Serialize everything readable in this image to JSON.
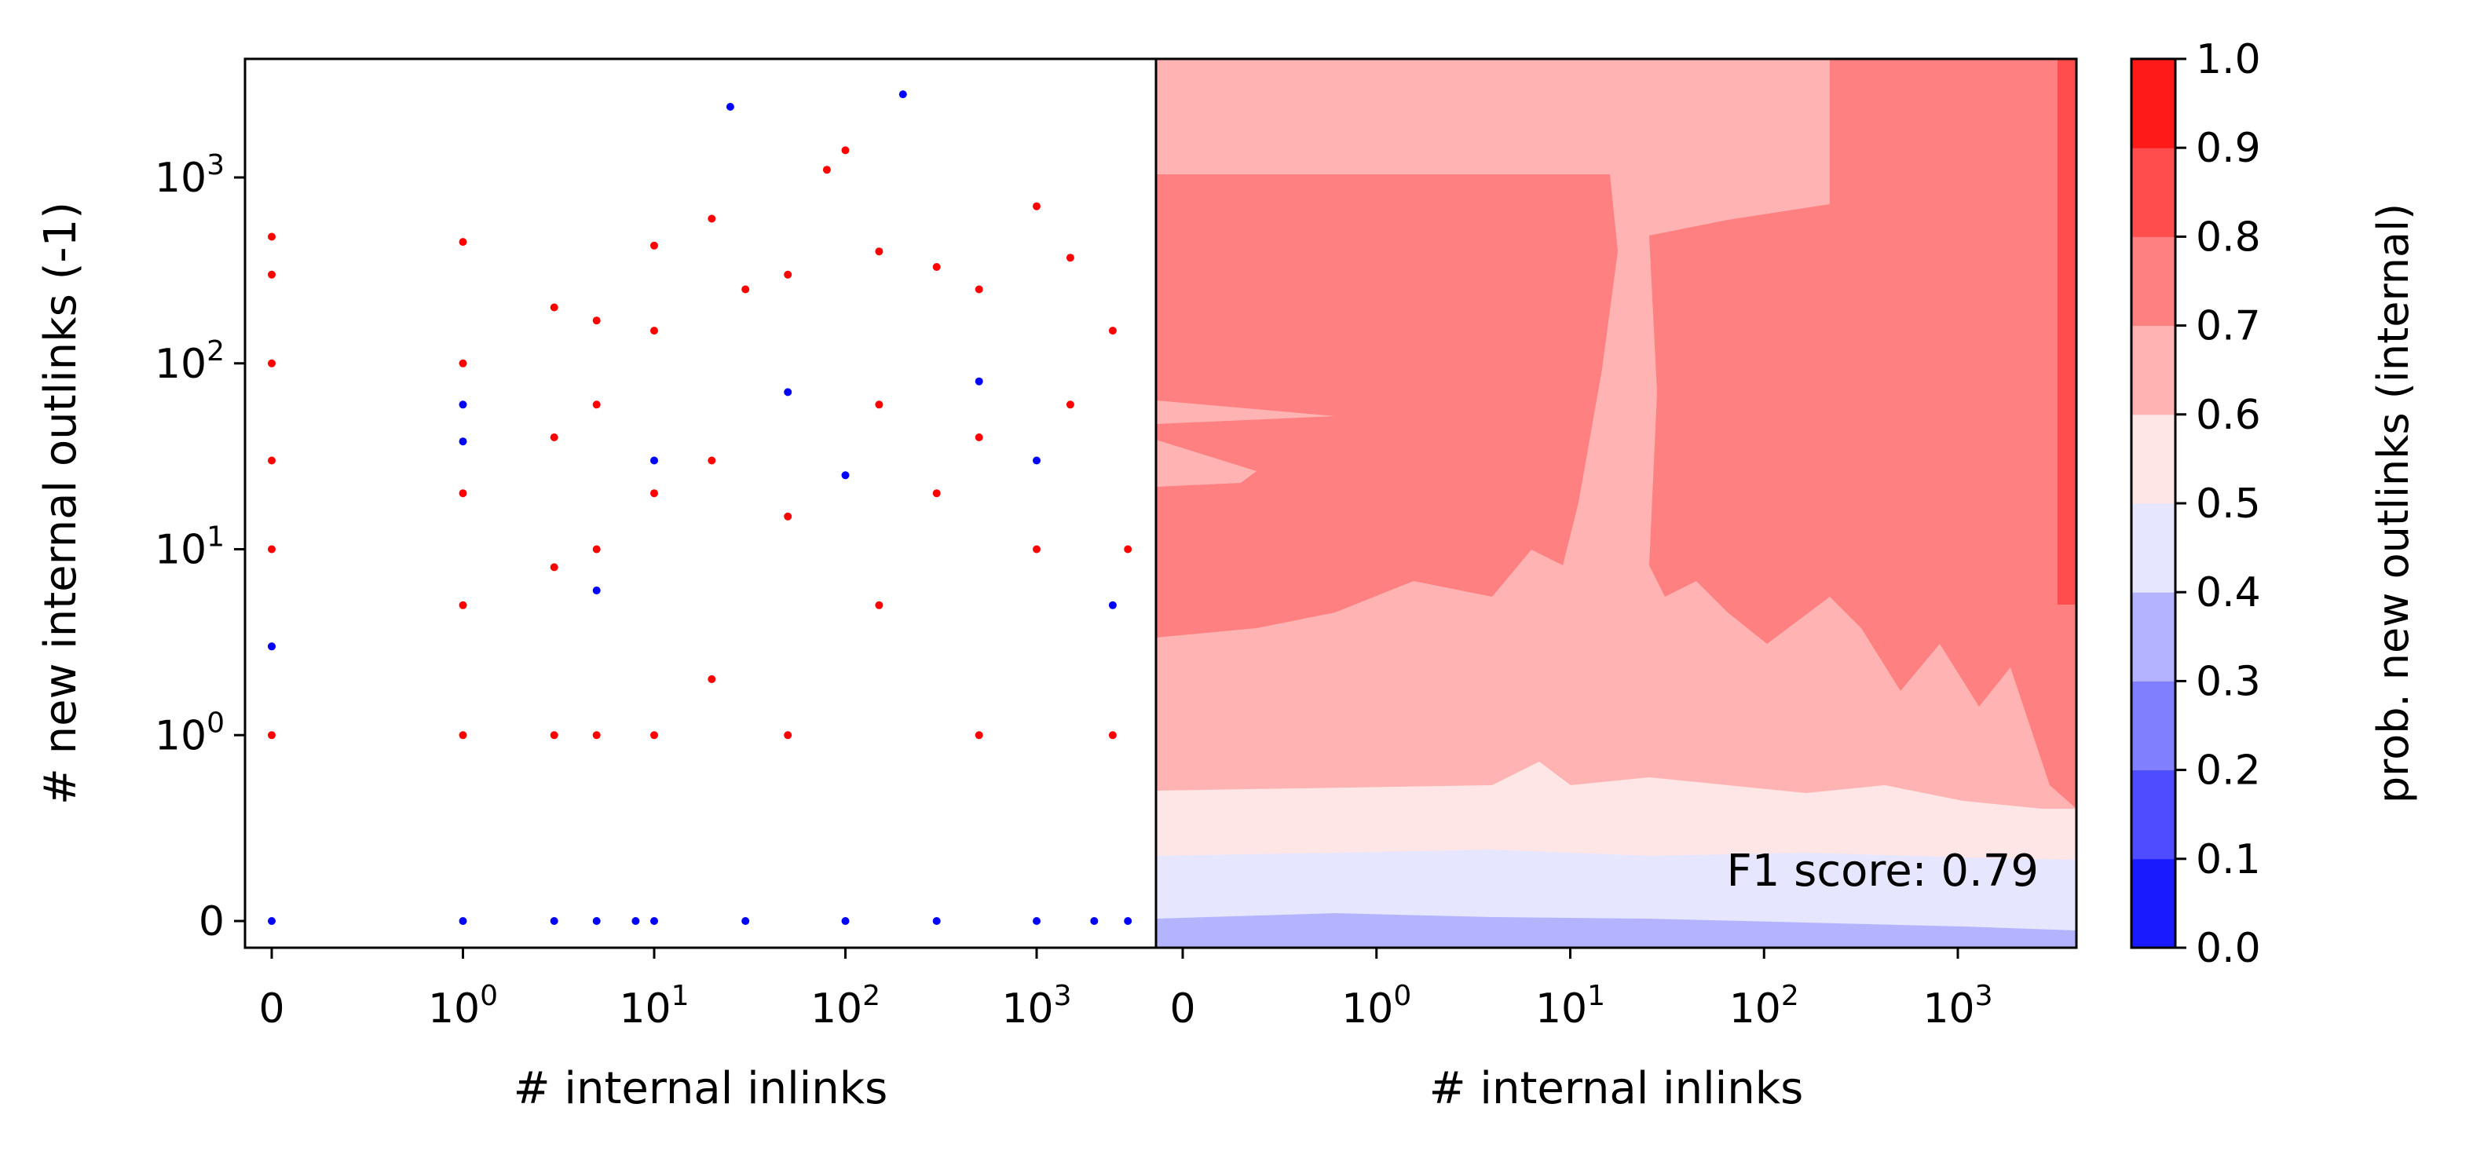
{
  "figure": {
    "left_panel": {
      "xlabel": "# internal inlinks",
      "ylabel": "# new internal outlinks (-1)",
      "x_ticks": [
        {
          "base": "0",
          "exp": ""
        },
        {
          "base": "10",
          "exp": "0"
        },
        {
          "base": "10",
          "exp": "1"
        },
        {
          "base": "10",
          "exp": "2"
        },
        {
          "base": "10",
          "exp": "3"
        }
      ],
      "y_ticks": [
        {
          "base": "0",
          "exp": ""
        },
        {
          "base": "10",
          "exp": "0"
        },
        {
          "base": "10",
          "exp": "1"
        },
        {
          "base": "10",
          "exp": "2"
        },
        {
          "base": "10",
          "exp": "3"
        }
      ]
    },
    "right_panel": {
      "xlabel": "# internal inlinks",
      "x_ticks": [
        {
          "base": "0",
          "exp": ""
        },
        {
          "base": "10",
          "exp": "0"
        },
        {
          "base": "10",
          "exp": "1"
        },
        {
          "base": "10",
          "exp": "2"
        },
        {
          "base": "10",
          "exp": "3"
        }
      ],
      "annotation": "F1 score: 0.79"
    },
    "colorbar": {
      "label": "prob. new outlinks (internal)",
      "ticks": [
        "0.0",
        "0.1",
        "0.2",
        "0.3",
        "0.4",
        "0.5",
        "0.6",
        "0.7",
        "0.8",
        "0.9",
        "1.0"
      ],
      "colors": [
        "#1a1aff",
        "#4d4dff",
        "#8080ff",
        "#b3b3ff",
        "#e6e6ff",
        "#ffe6e6",
        "#ffb3b3",
        "#ff8080",
        "#ff4d4d",
        "#ff1a1a"
      ]
    }
  },
  "chart_data": [
    {
      "type": "scatter",
      "xlabel": "# internal inlinks",
      "ylabel": "# new internal outlinks (-1)",
      "xscale": "symlog",
      "yscale": "symlog",
      "xlim": [
        0,
        3500
      ],
      "ylim": [
        0,
        3000
      ],
      "series": [
        {
          "color": "#ff0000",
          "points": [
            [
              0,
              1
            ],
            [
              0,
              3
            ],
            [
              0,
              10
            ],
            [
              0,
              30
            ],
            [
              0,
              100
            ],
            [
              0,
              300
            ],
            [
              0,
              480
            ],
            [
              1,
              1
            ],
            [
              1,
              5
            ],
            [
              1,
              20
            ],
            [
              1,
              100
            ],
            [
              1,
              450
            ],
            [
              3,
              1
            ],
            [
              3,
              8
            ],
            [
              3,
              40
            ],
            [
              3,
              200
            ],
            [
              5,
              1
            ],
            [
              5,
              10
            ],
            [
              5,
              60
            ],
            [
              5,
              170
            ],
            [
              10,
              1
            ],
            [
              10,
              20
            ],
            [
              10,
              150
            ],
            [
              10,
              430
            ],
            [
              20,
              2
            ],
            [
              20,
              30
            ],
            [
              20,
              600
            ],
            [
              30,
              250
            ],
            [
              50,
              1
            ],
            [
              50,
              15
            ],
            [
              50,
              300
            ],
            [
              80,
              1100
            ],
            [
              100,
              1400
            ],
            [
              150,
              5
            ],
            [
              150,
              60
            ],
            [
              150,
              400
            ],
            [
              300,
              20
            ],
            [
              300,
              330
            ],
            [
              500,
              1
            ],
            [
              500,
              40
            ],
            [
              500,
              250
            ],
            [
              1000,
              10
            ],
            [
              1000,
              700
            ],
            [
              1500,
              60
            ],
            [
              1500,
              370
            ],
            [
              2500,
              1
            ],
            [
              2500,
              150
            ],
            [
              3000,
              10
            ]
          ]
        },
        {
          "color": "#0000ff",
          "points": [
            [
              0,
              0
            ],
            [
              0,
              3
            ],
            [
              1,
              0
            ],
            [
              1,
              38
            ],
            [
              1,
              60
            ],
            [
              3,
              0
            ],
            [
              5,
              0
            ],
            [
              5,
              6
            ],
            [
              8,
              0
            ],
            [
              10,
              0
            ],
            [
              10,
              30
            ],
            [
              25,
              2400
            ],
            [
              30,
              0
            ],
            [
              50,
              70
            ],
            [
              100,
              0
            ],
            [
              100,
              25
            ],
            [
              200,
              2800
            ],
            [
              300,
              0
            ],
            [
              500,
              80
            ],
            [
              1000,
              0
            ],
            [
              1000,
              30
            ],
            [
              2000,
              0
            ],
            [
              2500,
              5
            ],
            [
              3000,
              0
            ]
          ]
        }
      ]
    },
    {
      "type": "heatmap",
      "xlabel": "# internal inlinks",
      "xscale": "symlog",
      "xlim": [
        0,
        3500
      ],
      "zlim": [
        0,
        1
      ],
      "annotation": "F1 score: 0.79",
      "levels": [
        0.0,
        0.1,
        0.2,
        0.3,
        0.4,
        0.5,
        0.6,
        0.7,
        0.8,
        0.9,
        1.0
      ],
      "bands_by_y": [
        {
          "y_range": [
            0,
            0.1
          ],
          "probability_range": [
            0.3,
            0.4
          ]
        },
        {
          "y_range": [
            0.1,
            0.8
          ],
          "probability_range": [
            0.4,
            0.5
          ]
        },
        {
          "y_range": [
            0.8,
            3
          ],
          "probability_range": [
            0.5,
            0.6
          ]
        },
        {
          "y_range": [
            3,
            3000
          ],
          "probability_range": [
            0.6,
            0.8
          ]
        }
      ]
    }
  ]
}
